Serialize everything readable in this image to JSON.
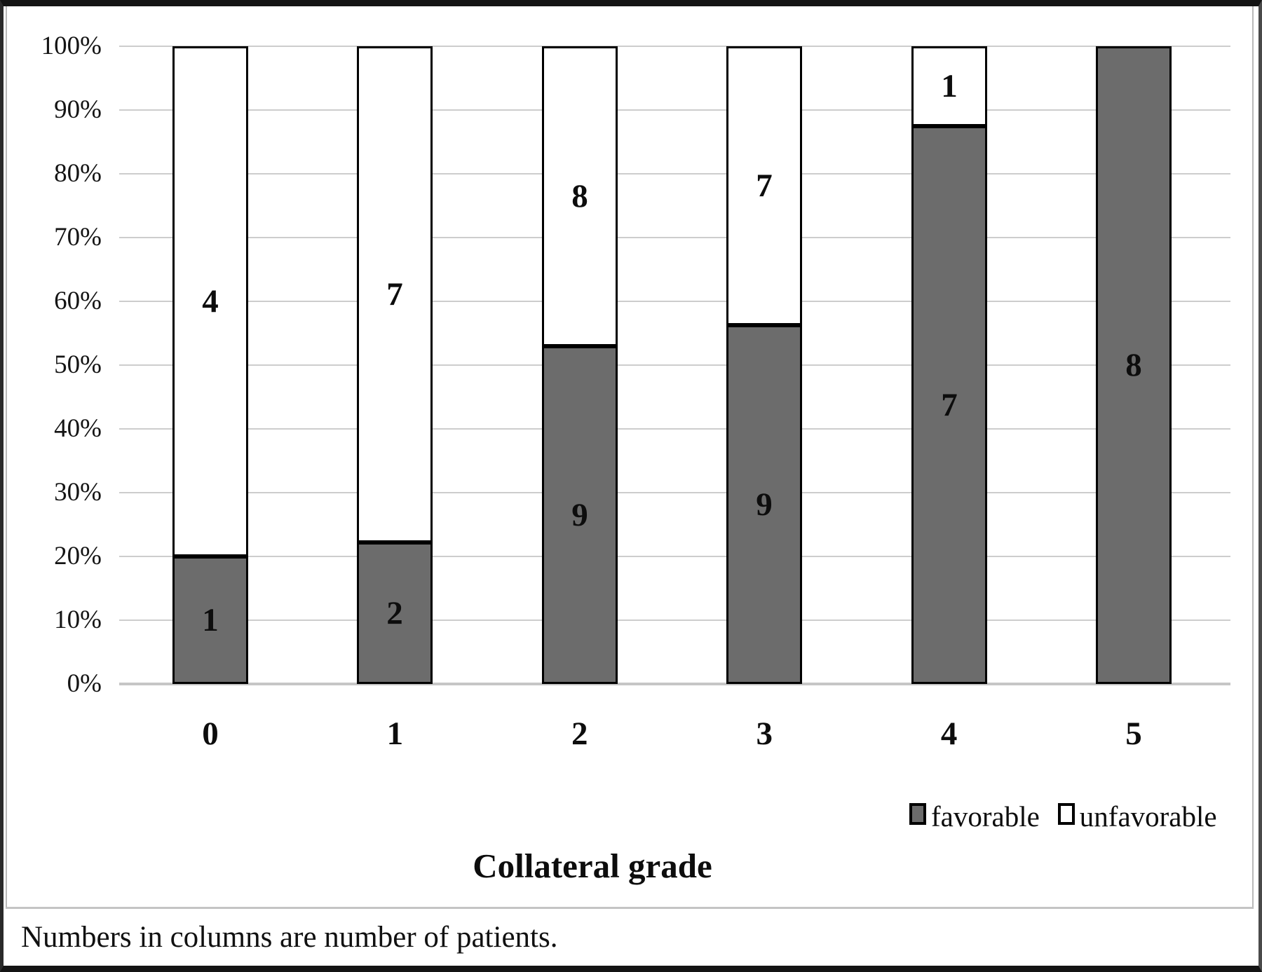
{
  "chart_data": {
    "type": "bar",
    "stacked": true,
    "percent_axis": true,
    "categories": [
      "0",
      "1",
      "2",
      "3",
      "4",
      "5"
    ],
    "series": [
      {
        "name": "favorable",
        "color": "#6c6c6c",
        "values": [
          1,
          2,
          9,
          9,
          7,
          8
        ]
      },
      {
        "name": "unfavorable",
        "color": "#ffffff",
        "values": [
          4,
          7,
          8,
          7,
          1,
          0
        ]
      }
    ],
    "title": "",
    "xlabel": "Collateral grade",
    "ylabel": "",
    "y_ticks": [
      "0%",
      "10%",
      "20%",
      "30%",
      "40%",
      "50%",
      "60%",
      "70%",
      "80%",
      "90%",
      "100%"
    ],
    "ylim": [
      0,
      100
    ],
    "grid": true,
    "legend_position": "bottom-right",
    "value_labels": "number of patients in each segment",
    "footnote": "Numbers in columns are number of patients."
  }
}
